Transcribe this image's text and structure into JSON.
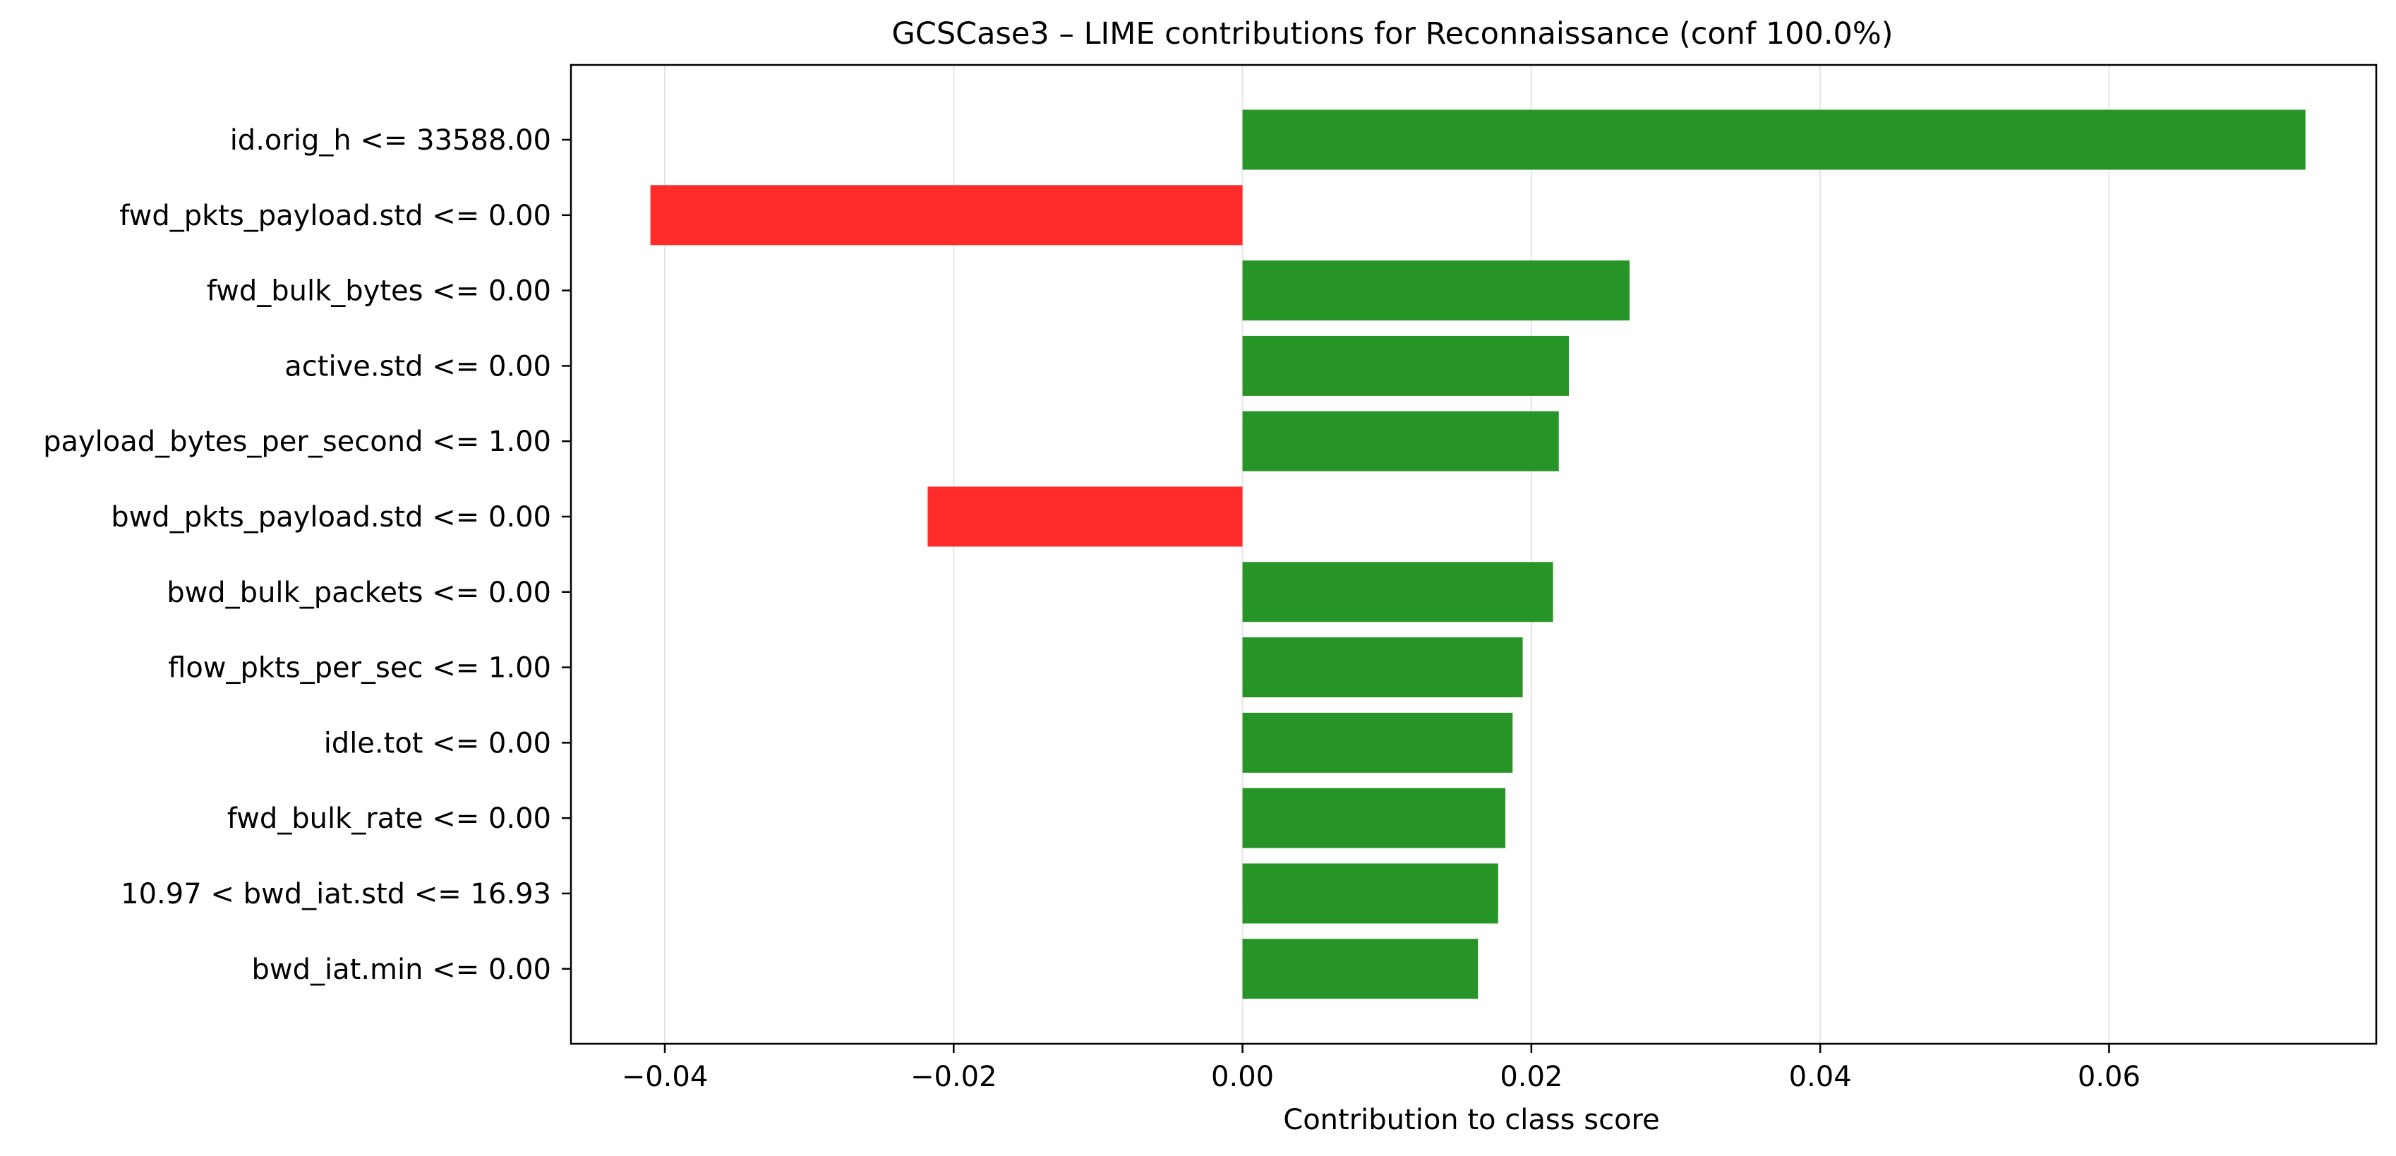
{
  "chart_data": {
    "type": "bar",
    "orientation": "horizontal",
    "title": "GCSCase3 – LIME contributions for Reconnaissance (conf 100.0%)",
    "xlabel": "Contribution to class score",
    "ylabel": "",
    "xlim": [
      -0.0465,
      0.0785
    ],
    "x_ticks": [
      -0.04,
      -0.02,
      0.0,
      0.02,
      0.04,
      0.06
    ],
    "x_tick_labels": [
      "−0.04",
      "−0.02",
      "0.00",
      "0.02",
      "0.04",
      "0.06"
    ],
    "grid": "x",
    "categories": [
      "id.orig_h <= 33588.00",
      "fwd_pkts_payload.std <= 0.00",
      "fwd_bulk_bytes <= 0.00",
      "active.std <= 0.00",
      "payload_bytes_per_second <= 1.00",
      "bwd_pkts_payload.std <= 0.00",
      "bwd_bulk_packets <= 0.00",
      "flow_pkts_per_sec <= 1.00",
      "idle.tot <= 0.00",
      "fwd_bulk_rate <= 0.00",
      "10.97 < bwd_iat.std <= 16.93",
      "bwd_iat.min <= 0.00"
    ],
    "values": [
      0.0736,
      -0.041,
      0.0268,
      0.0226,
      0.0219,
      -0.0218,
      0.0215,
      0.0194,
      0.0187,
      0.0182,
      0.0177,
      0.0163
    ],
    "colors": {
      "positive": "#279427",
      "negative": "#ff2b2b",
      "grid": "#e5e5e5",
      "axis": "#000000"
    }
  }
}
